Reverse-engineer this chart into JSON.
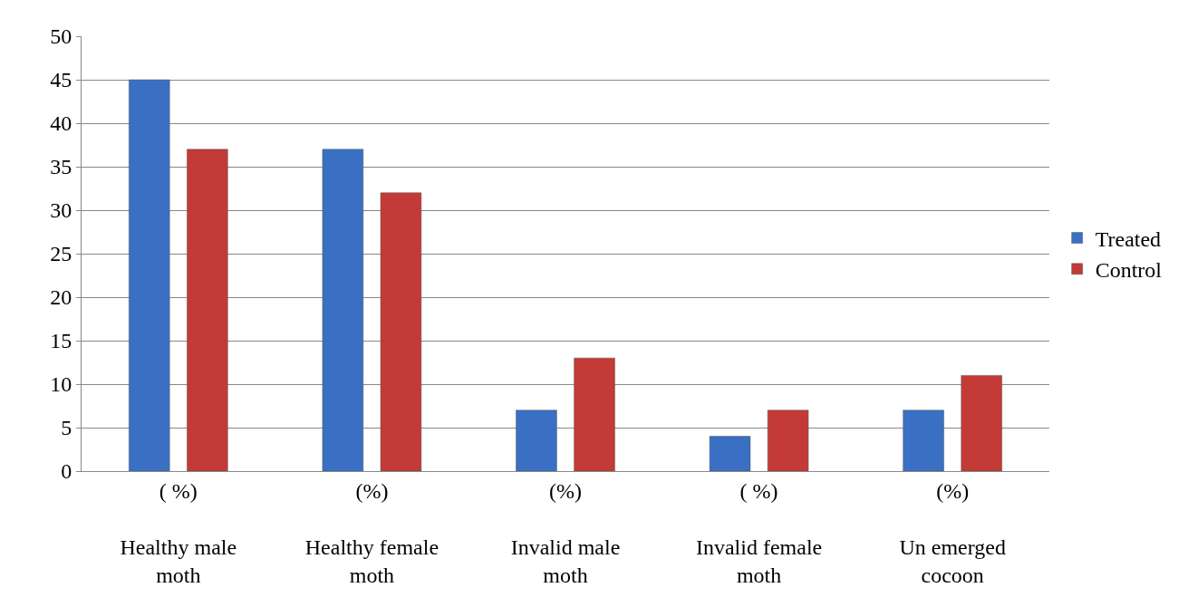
{
  "chart_data": {
    "type": "bar",
    "categories": [
      "( %)\n\nHealthy male\nmoth",
      "(%)\n\nHealthy female\nmoth",
      "(%)\n\nInvalid male\nmoth",
      "( %)\n\nInvalid female\nmoth",
      "(%)\n\nUn emerged\ncocoon"
    ],
    "series": [
      {
        "name": "Treated",
        "color": "#3a70c4",
        "values": [
          45,
          37,
          7,
          4,
          7
        ]
      },
      {
        "name": "Control",
        "color": "#c43a36",
        "values": [
          37,
          32,
          13,
          7,
          11
        ]
      }
    ],
    "ylim": [
      0,
      50
    ],
    "yticks": [
      0,
      5,
      10,
      15,
      20,
      25,
      30,
      35,
      40,
      45,
      50
    ],
    "grid": "y",
    "legend": "right"
  }
}
